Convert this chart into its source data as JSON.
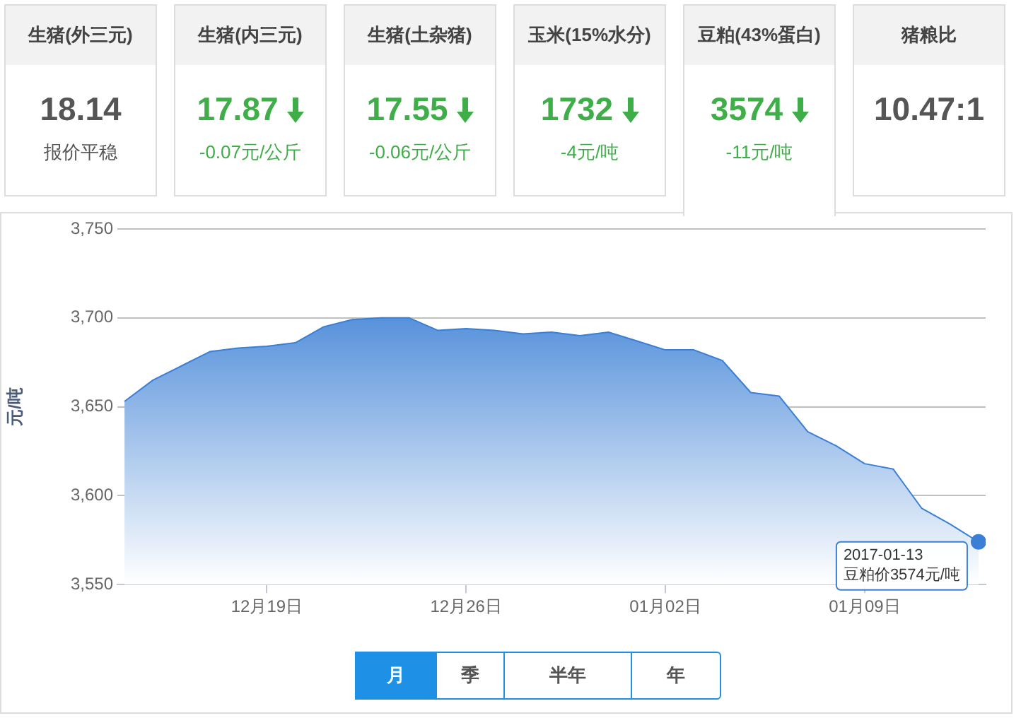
{
  "chart_data": [
    {
      "type": "other",
      "title": "生猪(外三元)",
      "annotations": [
        "18.14",
        "报价平稳"
      ]
    },
    {
      "type": "other",
      "title": "生猪(内三元)",
      "annotations": [
        "17.87",
        "-0.07元/公斤"
      ],
      "colors": [
        "#3fae49",
        "#3fae49"
      ]
    },
    {
      "type": "other",
      "title": "生猪(土杂猪)",
      "annotations": [
        "17.55",
        "-0.06元/公斤"
      ],
      "colors": [
        "#3fae49",
        "#3fae49"
      ]
    },
    {
      "type": "other",
      "title": "玉米(15%水分)",
      "annotations": [
        "1732",
        "-4元/吨"
      ],
      "colors": [
        "#3fae49",
        "#3fae49"
      ]
    },
    {
      "type": "other",
      "title": "豆粕(43%蛋白)",
      "annotations": [
        "3574",
        "-11元/吨"
      ],
      "colors": [
        "#3fae49",
        "#3fae49"
      ]
    },
    {
      "type": "other",
      "title": "猪粮比",
      "annotations": [
        "10.47:1"
      ]
    },
    {
      "type": "area",
      "ylabel": "元/吨",
      "x": [
        "2016-12-14",
        "2016-12-15",
        "2016-12-16",
        "2016-12-17",
        "2016-12-18",
        "2016-12-19",
        "2016-12-20",
        "2016-12-21",
        "2016-12-22",
        "2016-12-23",
        "2016-12-24",
        "2016-12-25",
        "2016-12-26",
        "2016-12-27",
        "2016-12-28",
        "2016-12-29",
        "2016-12-30",
        "2016-12-31",
        "2017-01-01",
        "2017-01-02",
        "2017-01-03",
        "2017-01-04",
        "2017-01-05",
        "2017-01-06",
        "2017-01-07",
        "2017-01-08",
        "2017-01-09",
        "2017-01-10",
        "2017-01-11",
        "2017-01-12",
        "2017-01-13"
      ],
      "series": [
        {
          "color": "#3a7fd5",
          "values": [
            3653,
            3665,
            3673,
            3681,
            3683,
            3684,
            3686,
            3695,
            3699,
            3700,
            3700,
            3693,
            3694,
            3693,
            3691,
            3692,
            3690,
            3692,
            3687,
            3682,
            3682,
            3676,
            3658,
            3656,
            3636,
            3628,
            3618,
            3615,
            3593,
            3584,
            3574
          ]
        }
      ],
      "xlim": [
        "2016-12-13T18:00",
        "2017-01-13T06:00"
      ],
      "xticks": [
        {
          "value": "2016-12-19",
          "label": "12月19日"
        },
        {
          "value": "2016-12-26",
          "label": "12月26日"
        },
        {
          "value": "2017-01-02",
          "label": "01月02日"
        },
        {
          "value": "2017-01-09",
          "label": "01月09日"
        }
      ],
      "ylim": [
        3550,
        3750
      ],
      "yticks": [
        {
          "value": 3550,
          "label": "3,550"
        },
        {
          "value": 3600,
          "label": "3,600"
        },
        {
          "value": 3650,
          "label": "3,650"
        },
        {
          "value": 3700,
          "label": "3,700"
        },
        {
          "value": 3750,
          "label": "3,750"
        }
      ],
      "grid": "y",
      "legend": false,
      "marker": "none",
      "annotations": [
        {
          "text": "2017-01-13\n豆粕价3574元/吨",
          "x": "2017-01-13",
          "y": 3574
        }
      ]
    },
    {
      "type": "other",
      "annotations": [
        "月",
        "季",
        "半年",
        "年"
      ]
    }
  ]
}
